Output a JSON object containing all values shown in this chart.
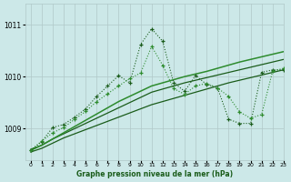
{
  "title": "Graphe pression niveau de la mer (hPa)",
  "bg_color": "#cce8e8",
  "grid_color": "#b0c8c8",
  "line_color_dark": "#1a5c1a",
  "line_color_light": "#2d8b2d",
  "xlim": [
    -0.5,
    23
  ],
  "ylim": [
    1008.4,
    1011.4
  ],
  "yticks": [
    1009,
    1010,
    1011
  ],
  "xticks": [
    0,
    1,
    2,
    3,
    4,
    5,
    6,
    7,
    8,
    9,
    10,
    11,
    12,
    13,
    14,
    15,
    16,
    17,
    18,
    19,
    20,
    21,
    22,
    23
  ],
  "smooth1": [
    1008.55,
    1008.62,
    1008.72,
    1008.82,
    1008.9,
    1008.98,
    1009.06,
    1009.14,
    1009.22,
    1009.3,
    1009.38,
    1009.46,
    1009.52,
    1009.58,
    1009.64,
    1009.7,
    1009.76,
    1009.82,
    1009.88,
    1009.93,
    1009.98,
    1010.03,
    1010.08,
    1010.13
  ],
  "smooth2": [
    1008.6,
    1008.68,
    1008.8,
    1008.9,
    1009.0,
    1009.1,
    1009.2,
    1009.3,
    1009.4,
    1009.5,
    1009.6,
    1009.7,
    1009.76,
    1009.82,
    1009.88,
    1009.93,
    1009.98,
    1010.03,
    1010.08,
    1010.13,
    1010.18,
    1010.23,
    1010.28,
    1010.33
  ],
  "smooth3": [
    1008.58,
    1008.68,
    1008.8,
    1008.92,
    1009.04,
    1009.16,
    1009.28,
    1009.4,
    1009.52,
    1009.62,
    1009.72,
    1009.82,
    1009.88,
    1009.94,
    1010.0,
    1010.05,
    1010.1,
    1010.16,
    1010.22,
    1010.28,
    1010.33,
    1010.38,
    1010.43,
    1010.48
  ],
  "jagged1_x": [
    0,
    1,
    2,
    3,
    4,
    5,
    6,
    7,
    8,
    9,
    10,
    11,
    12,
    13,
    14,
    15,
    16,
    17,
    18,
    19,
    20,
    21,
    22,
    23
  ],
  "jagged1_y": [
    1008.58,
    1008.75,
    1009.02,
    1009.08,
    1009.22,
    1009.38,
    1009.62,
    1009.82,
    1010.02,
    1009.88,
    1010.62,
    1010.92,
    1010.68,
    1009.88,
    1009.72,
    1010.02,
    1009.85,
    1009.78,
    1009.18,
    1009.1,
    1009.1,
    1010.08,
    1010.13,
    1010.13
  ],
  "jagged2_x": [
    0,
    1,
    2,
    3,
    4,
    5,
    6,
    7,
    8,
    9,
    10,
    11,
    12,
    13,
    14,
    15,
    16,
    17,
    18,
    19,
    20,
    21,
    22,
    23
  ],
  "jagged2_y": [
    1008.58,
    1008.76,
    1008.92,
    1009.02,
    1009.18,
    1009.33,
    1009.52,
    1009.67,
    1009.82,
    1009.96,
    1010.07,
    1010.58,
    1010.22,
    1009.77,
    1009.66,
    1009.82,
    1009.87,
    1009.78,
    1009.62,
    1009.32,
    1009.2,
    1009.27,
    1010.1,
    1010.16
  ]
}
